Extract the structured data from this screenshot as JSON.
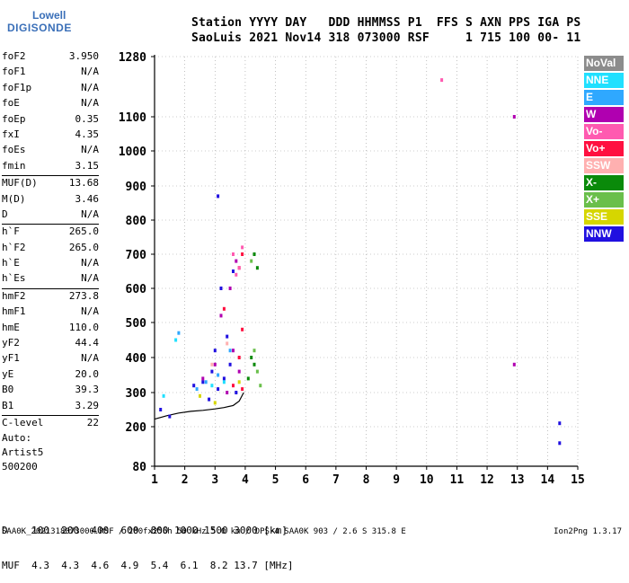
{
  "logo": {
    "line1": "Lowell",
    "line2": "DIGISONDE"
  },
  "header": {
    "line1": "Station YYYY DAY   DDD HHMMSS P1  FFS S AXN PPS IGA PS",
    "line2": "SaoLuis 2021 Nov14 318 073000 RSF     1 715 100 00- 11"
  },
  "parameters": [
    {
      "name": "foF2",
      "value": "3.950"
    },
    {
      "name": "foF1",
      "value": "N/A"
    },
    {
      "name": "foF1p",
      "value": "N/A"
    },
    {
      "name": "foE",
      "value": "N/A"
    },
    {
      "name": "foEp",
      "value": "0.35"
    },
    {
      "name": "fxI",
      "value": "4.35"
    },
    {
      "name": "foEs",
      "value": "N/A"
    },
    {
      "name": "fmin",
      "value": "3.15"
    },
    {
      "sep": true
    },
    {
      "name": "MUF(D)",
      "value": "13.68"
    },
    {
      "name": "M(D)",
      "value": "3.46"
    },
    {
      "name": "D",
      "value": "N/A"
    },
    {
      "sep": true
    },
    {
      "name": "h`F",
      "value": "265.0"
    },
    {
      "name": "h`F2",
      "value": "265.0"
    },
    {
      "name": "h`E",
      "value": "N/A"
    },
    {
      "name": "h`Es",
      "value": "N/A"
    },
    {
      "sep": true
    },
    {
      "name": "hmF2",
      "value": "273.8"
    },
    {
      "name": "hmF1",
      "value": "N/A"
    },
    {
      "name": "hmE",
      "value": "110.0"
    },
    {
      "name": "yF2",
      "value": "44.4"
    },
    {
      "name": "yF1",
      "value": "N/A"
    },
    {
      "name": "yE",
      "value": "20.0"
    },
    {
      "name": "B0",
      "value": "39.3"
    },
    {
      "name": "B1",
      "value": "3.29"
    },
    {
      "sep": true
    },
    {
      "name": "C-level",
      "value": "22"
    }
  ],
  "auto": {
    "line1": "Auto:",
    "line2": "Artist5",
    "line3": "500200"
  },
  "legend": [
    {
      "label": "NoVal",
      "color": "#8c8c8c"
    },
    {
      "label": "NNE",
      "color": "#20e0ff"
    },
    {
      "label": "E",
      "color": "#2fa8ff"
    },
    {
      "label": "W",
      "color": "#b000b0"
    },
    {
      "label": "Vo-",
      "color": "#ff5ab0"
    },
    {
      "label": "Vo+",
      "color": "#ff1040"
    },
    {
      "label": "SSW",
      "color": "#ffb0b0"
    },
    {
      "label": "X-",
      "color": "#0a8a0a"
    },
    {
      "label": "X+",
      "color": "#6abf4b"
    },
    {
      "label": "SSE",
      "color": "#d6d600"
    },
    {
      "label": "NNW",
      "color": "#2010e0"
    }
  ],
  "dmuf": {
    "line1": "D    100  200  400  600  800 1000 1500 3000 [km]",
    "line2": "MUF  4.3  4.3  4.6  4.9  5.4  6.1  8.2 13.7 [MHz]"
  },
  "footer": {
    "left": "SAA0K_2021318073000.RSF / 280fx256h 50 kHz 5.0 km / DPS-4 SAA0K 903 / 2.6 S 315.8 E",
    "right": "Ion2Png 1.3.17"
  },
  "chart_data": {
    "type": "scatter",
    "title": "SaoLuis 2021 Nov14 318 073000 RSF",
    "xlabel": "",
    "ylabel": "",
    "xlim": [
      1,
      15
    ],
    "ylim": [
      80,
      1280
    ],
    "x_ticks": [
      1,
      2,
      3,
      4,
      5,
      6,
      7,
      8,
      9,
      10,
      11,
      12,
      13,
      14,
      15
    ],
    "y_ticks": [
      80,
      200,
      300,
      400,
      500,
      600,
      700,
      800,
      900,
      1000,
      1100,
      1280
    ],
    "y_scale": "nonlinear (ionogram virtual height)",
    "grid": true,
    "legend_position": "right",
    "trace_curve": {
      "name": "",
      "x": [
        1.0,
        1.4,
        1.8,
        2.2,
        2.6,
        3.0,
        3.3,
        3.6,
        3.8,
        3.95
      ],
      "y": [
        222,
        232,
        240,
        245,
        248,
        252,
        256,
        262,
        275,
        300
      ]
    },
    "series": [
      {
        "name": "NNW",
        "points": [
          [
            2.3,
            320
          ],
          [
            2.6,
            330
          ],
          [
            2.9,
            360
          ],
          [
            3.1,
            310
          ],
          [
            3.3,
            340
          ],
          [
            3.5,
            380
          ],
          [
            3.7,
            300
          ],
          [
            3.0,
            420
          ],
          [
            2.8,
            280
          ],
          [
            3.4,
            460
          ],
          [
            3.2,
            600
          ],
          [
            3.6,
            650
          ],
          [
            1.5,
            230
          ],
          [
            1.2,
            250
          ],
          [
            3.1,
            870
          ],
          [
            14.4,
            210
          ],
          [
            14.4,
            150
          ]
        ]
      },
      {
        "name": "W",
        "points": [
          [
            2.6,
            340
          ],
          [
            3.0,
            380
          ],
          [
            3.4,
            300
          ],
          [
            3.6,
            420
          ],
          [
            3.8,
            360
          ],
          [
            3.5,
            600
          ],
          [
            3.7,
            680
          ],
          [
            3.2,
            520
          ],
          [
            12.9,
            1100
          ],
          [
            12.9,
            380
          ]
        ]
      },
      {
        "name": "Vo+",
        "points": [
          [
            3.6,
            320
          ],
          [
            3.8,
            400
          ],
          [
            3.9,
            480
          ],
          [
            3.8,
            660
          ],
          [
            3.9,
            700
          ],
          [
            3.3,
            540
          ],
          [
            3.9,
            310
          ]
        ]
      },
      {
        "name": "Vo-",
        "points": [
          [
            3.8,
            660
          ],
          [
            3.9,
            720
          ],
          [
            3.7,
            640
          ],
          [
            3.6,
            700
          ],
          [
            10.5,
            1210
          ]
        ]
      },
      {
        "name": "X-",
        "points": [
          [
            4.2,
            400
          ],
          [
            4.3,
            380
          ],
          [
            4.4,
            660
          ],
          [
            4.3,
            700
          ],
          [
            4.1,
            340
          ]
        ]
      },
      {
        "name": "X+",
        "points": [
          [
            4.3,
            420
          ],
          [
            4.4,
            360
          ],
          [
            4.2,
            680
          ],
          [
            4.5,
            320
          ]
        ]
      },
      {
        "name": "E",
        "points": [
          [
            2.4,
            310
          ],
          [
            2.7,
            330
          ],
          [
            3.1,
            350
          ],
          [
            1.8,
            470
          ],
          [
            3.5,
            420
          ]
        ]
      },
      {
        "name": "NNE",
        "points": [
          [
            2.9,
            320
          ],
          [
            3.3,
            330
          ],
          [
            1.3,
            290
          ],
          [
            1.7,
            450
          ]
        ]
      },
      {
        "name": "SSE",
        "points": [
          [
            2.5,
            290
          ],
          [
            3.0,
            270
          ],
          [
            3.8,
            330
          ]
        ]
      },
      {
        "name": "SSW",
        "points": [
          [
            3.4,
            440
          ],
          [
            2.9,
            380
          ]
        ]
      }
    ]
  }
}
